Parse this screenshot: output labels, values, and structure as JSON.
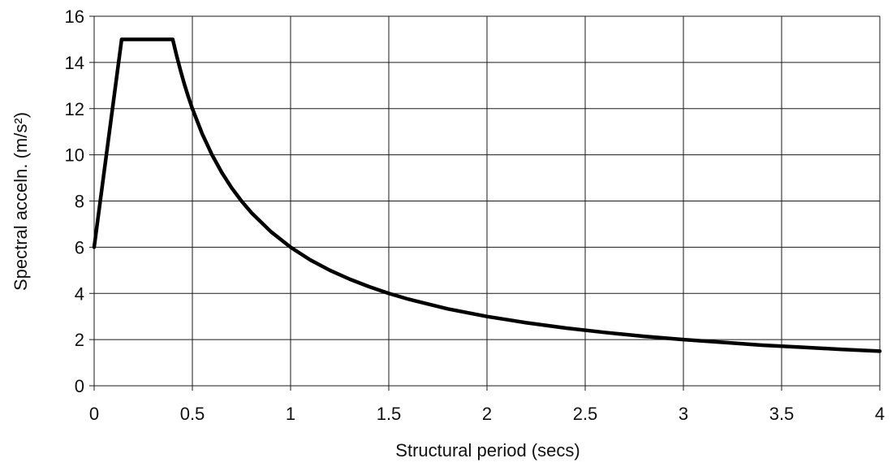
{
  "chart_data": {
    "type": "line",
    "title": "",
    "xlabel": "Structural period (secs)",
    "ylabel": "Spectral acceln. (m/s²)",
    "xlim": [
      0,
      4
    ],
    "ylim": [
      0,
      16
    ],
    "x_ticks": [
      "0",
      "0.5",
      "1",
      "1.5",
      "2",
      "2.5",
      "3",
      "3.5",
      "4"
    ],
    "y_ticks": [
      "0",
      "2",
      "4",
      "6",
      "8",
      "10",
      "12",
      "14",
      "16"
    ],
    "grid": true,
    "legend": "none",
    "series": [
      {
        "color": "#000000",
        "x": [
          0,
          0.14,
          0.4,
          0.42,
          0.44,
          0.46,
          0.48,
          0.5,
          0.55,
          0.6,
          0.65,
          0.7,
          0.75,
          0.8,
          0.9,
          1.0,
          1.1,
          1.2,
          1.3,
          1.4,
          1.5,
          1.6,
          1.8,
          2.0,
          2.2,
          2.4,
          2.6,
          2.8,
          3.0,
          3.2,
          3.4,
          3.6,
          3.8,
          4.0
        ],
        "y": [
          6,
          15,
          15,
          14.29,
          13.64,
          13.04,
          12.5,
          12.0,
          10.91,
          10.0,
          9.23,
          8.57,
          8.0,
          7.5,
          6.67,
          6.0,
          5.45,
          5.0,
          4.62,
          4.29,
          4.0,
          3.75,
          3.33,
          3.0,
          2.73,
          2.5,
          2.31,
          2.14,
          2.0,
          1.88,
          1.76,
          1.67,
          1.58,
          1.5
        ]
      }
    ]
  }
}
